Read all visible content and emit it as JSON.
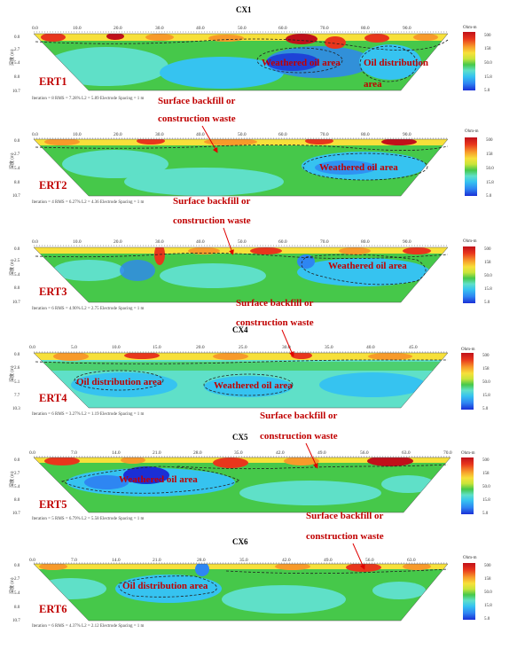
{
  "colors": {
    "accent_red": "#c00000",
    "scale": [
      "#1a2fd6",
      "#2e86f2",
      "#36c3f0",
      "#5fe0c8",
      "#46c84a",
      "#c8e43a",
      "#f7e03a",
      "#f79a2a",
      "#e8361c",
      "#c0101a"
    ]
  },
  "panels": [
    {
      "title": "CX1",
      "x_ticks": [
        "0.0",
        "10.0",
        "20.0",
        "30.0",
        "40.0",
        "50.0",
        "60.0",
        "70.0",
        "80.0",
        "90.0"
      ],
      "depth_ticks": [
        "0.0",
        "2.7",
        "5.4",
        "8.0",
        "10.7"
      ],
      "depth_label": "深度 (m)",
      "footer": "Iteration = 8    RMS = 7.28%    L2 = 5.89    Electrode Spacing = 1 m",
      "ert_label": "ERT1",
      "areas": [
        "Weathered oil area",
        "Oil distribution",
        "area"
      ],
      "colorbar": {
        "unit": "Ohm-m",
        "ticks": [
          "500",
          "158",
          "50.0",
          "15.8",
          "5.0"
        ]
      }
    },
    {
      "title": "",
      "x_ticks": [
        "0.0",
        "10.0",
        "20.0",
        "30.0",
        "40.0",
        "50.0",
        "60.0",
        "70.0",
        "80.0",
        "90.0"
      ],
      "depth_ticks": [
        "0.0",
        "2.7",
        "5.4",
        "8.0",
        "10.7"
      ],
      "depth_label": "深度 (m)",
      "footer": "Iteration = 4    RMS = 6.27%    L2 = 4.36    Electrode Spacing = 1 m",
      "ert_label": "ERT2",
      "areas": [
        "Weathered oil area"
      ],
      "colorbar": {
        "unit": "Ohm-m",
        "ticks": [
          "500",
          "158",
          "50.0",
          "15.8",
          "5.0"
        ]
      }
    },
    {
      "title": "",
      "x_ticks": [
        "0.0",
        "10.0",
        "20.0",
        "30.0",
        "40.0",
        "50.0",
        "60.0",
        "70.0",
        "80.0",
        "90.0"
      ],
      "depth_ticks": [
        "0.0",
        "2.5",
        "5.4",
        "8.0",
        "10.7"
      ],
      "depth_label": "深度 (m)",
      "footer": "Iteration = 6    RMS = 4.90%    L2 = 2.75    Electrode Spacing = 1 m",
      "ert_label": "ERT3",
      "areas": [
        "Weathered oil area"
      ],
      "colorbar": {
        "unit": "Ohm-m",
        "ticks": [
          "500",
          "158",
          "50.0",
          "15.8",
          "5.0"
        ]
      }
    },
    {
      "title": "CX4",
      "x_ticks": [
        "0.0",
        "5.0",
        "10.0",
        "15.0",
        "20.0",
        "25.0",
        "30.0",
        "35.0",
        "40.0",
        "45.0"
      ],
      "depth_ticks": [
        "0.0",
        "2.6",
        "5.1",
        "7.7",
        "10.3"
      ],
      "depth_label": "深度 (m)",
      "footer": "Iteration = 6    RMS = 3.27%    L2 = 1.19    Electrode Spacing = 1 m",
      "ert_label": "ERT4",
      "areas": [
        "Oil distribution area",
        "Weathered oil area"
      ],
      "colorbar": {
        "unit": "Ohm-m",
        "ticks": [
          "500",
          "158",
          "50.0",
          "15.8",
          "5.0"
        ]
      }
    },
    {
      "title": "CX5",
      "x_ticks": [
        "0.0",
        "7.0",
        "14.0",
        "21.0",
        "28.0",
        "35.0",
        "42.0",
        "49.0",
        "56.0",
        "63.0",
        "70.0"
      ],
      "depth_ticks": [
        "0.0",
        "2.7",
        "5.4",
        "8.0",
        "10.7"
      ],
      "depth_label": "深度 (m)",
      "footer": "Iteration = 5    RMS = 6.79%    L2 = 5.58    Electrode Spacing = 1 m",
      "ert_label": "ERT5",
      "areas": [
        "Weathered oil area"
      ],
      "colorbar": {
        "unit": "Ohm-m",
        "ticks": [
          "500",
          "158",
          "50.0",
          "15.8",
          "5.0"
        ]
      }
    },
    {
      "title": "CX6",
      "x_ticks": [
        "0.0",
        "7.0",
        "14.0",
        "21.0",
        "28.0",
        "35.0",
        "42.0",
        "49.0",
        "56.0",
        "63.0"
      ],
      "depth_ticks": [
        "0.0",
        "2.7",
        "5.4",
        "8.0",
        "10.7"
      ],
      "depth_label": "深度 (m)",
      "footer": "Iteration = 6    RMS = 4.37%    L2 = 2.12    Electrode Spacing = 1 m",
      "ert_label": "ERT6",
      "areas": [
        "Oil distribution area"
      ],
      "colorbar": {
        "unit": "Ohm-m",
        "ticks": [
          "500",
          "158",
          "50.0",
          "15.8",
          "5.0"
        ]
      }
    }
  ],
  "annotations": {
    "backfill_line1": "Surface backfill or",
    "backfill_line2": "construction waste"
  }
}
